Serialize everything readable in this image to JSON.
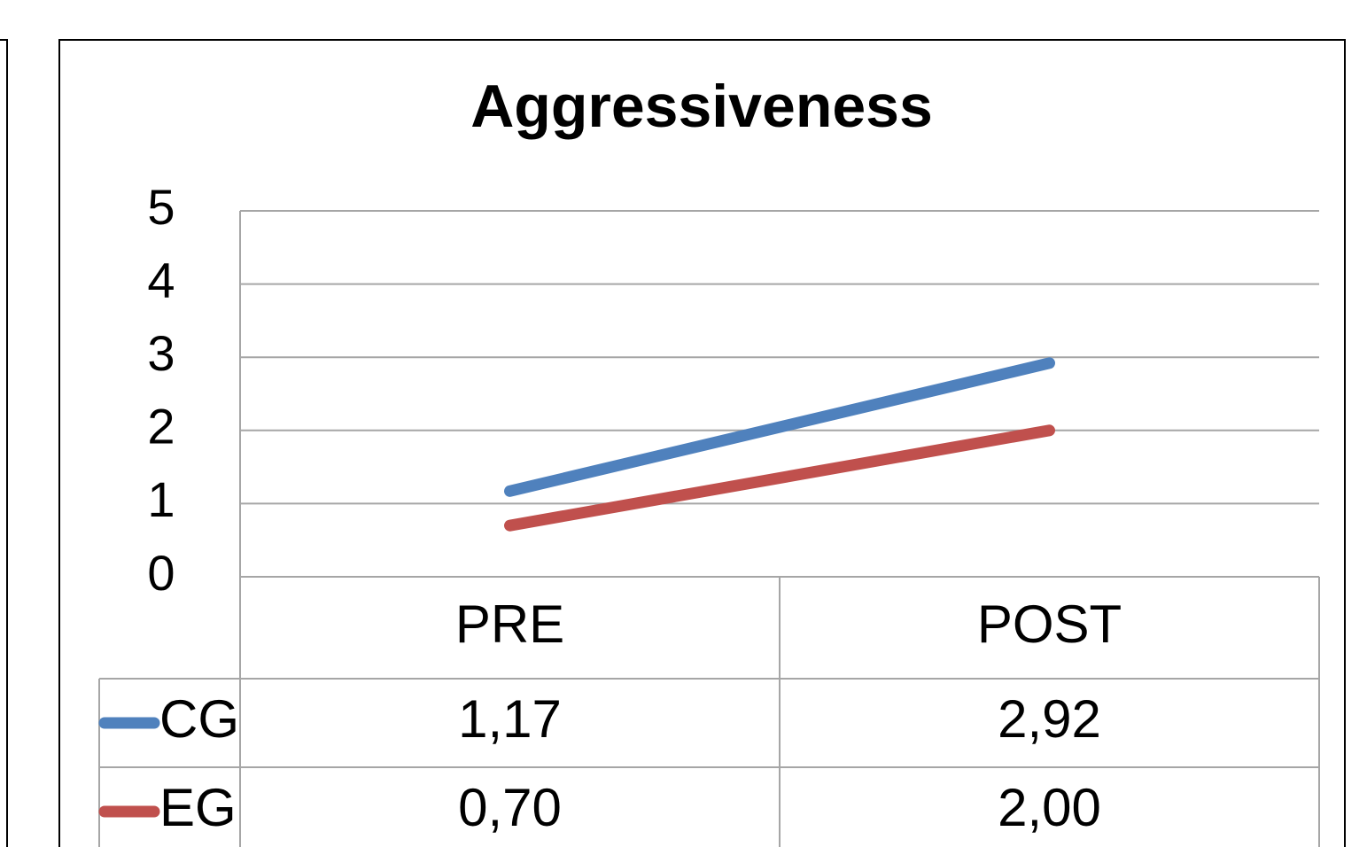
{
  "chart_data": {
    "type": "line",
    "title": "Aggressiveness",
    "categories": [
      "PRE",
      "POST"
    ],
    "series": [
      {
        "name": "CG",
        "color": "#4f81bd",
        "values": [
          1.17,
          2.92
        ],
        "value_labels": [
          "1,17",
          "2,92"
        ]
      },
      {
        "name": "EG",
        "color": "#c0504d",
        "values": [
          0.7,
          2.0
        ],
        "value_labels": [
          "0,70",
          "2,00"
        ]
      }
    ],
    "ylim": [
      0,
      5
    ],
    "yticks": [
      0,
      1,
      2,
      3,
      4,
      5
    ],
    "grid": true
  }
}
